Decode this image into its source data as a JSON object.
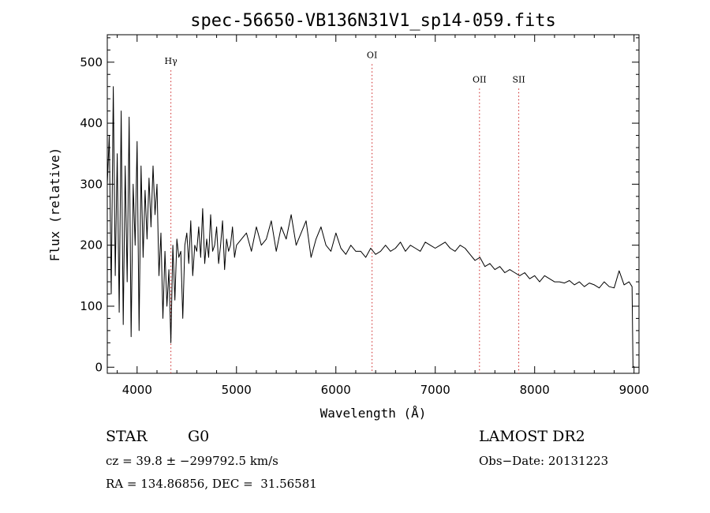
{
  "chart_data": {
    "type": "line",
    "title": "spec-56650-VB136N31V1_sp14-059.fits",
    "xlabel": "Wavelength (Å)",
    "ylabel": "Flux (relative)",
    "xlim": [
      3700,
      9050
    ],
    "ylim": [
      -10,
      545
    ],
    "xticks": [
      4000,
      5000,
      6000,
      7000,
      8000,
      9000
    ],
    "yticks": [
      0,
      100,
      200,
      300,
      400,
      500
    ],
    "grid": false,
    "line_color": "#000000",
    "marker_color": "#cc2222",
    "series": [
      {
        "x": [
          3700,
          3720,
          3740,
          3760,
          3780,
          3800,
          3820,
          3840,
          3860,
          3880,
          3900,
          3920,
          3940,
          3960,
          3980,
          4000,
          4020,
          4040,
          4060,
          4080,
          4100,
          4120,
          4140,
          4160,
          4180,
          4200,
          4220,
          4240,
          4260,
          4280,
          4300,
          4320,
          4340,
          4360,
          4380,
          4400,
          4420,
          4440,
          4460,
          4480,
          4500,
          4520,
          4540,
          4560,
          4580,
          4600,
          4620,
          4640,
          4660,
          4680,
          4700,
          4720,
          4740,
          4760,
          4780,
          4800,
          4820,
          4840,
          4860,
          4880,
          4900,
          4920,
          4940,
          4960,
          4980,
          5000,
          5050,
          5100,
          5150,
          5200,
          5250,
          5300,
          5350,
          5400,
          5450,
          5500,
          5550,
          5600,
          5650,
          5700,
          5750,
          5800,
          5850,
          5900,
          5950,
          6000,
          6050,
          6100,
          6150,
          6200,
          6250,
          6300,
          6350,
          6400,
          6450,
          6500,
          6550,
          6600,
          6650,
          6700,
          6750,
          6800,
          6850,
          6900,
          6950,
          7000,
          7050,
          7100,
          7150,
          7200,
          7250,
          7300,
          7350,
          7400,
          7450,
          7500,
          7550,
          7600,
          7650,
          7700,
          7750,
          7800,
          7850,
          7900,
          7950,
          8000,
          8050,
          8100,
          8150,
          8200,
          8250,
          8300,
          8350,
          8400,
          8450,
          8500,
          8550,
          8600,
          8650,
          8700,
          8750,
          8800,
          8850,
          8900,
          8950,
          8980,
          8990
        ],
        "y": [
          300,
          380,
          120,
          460,
          150,
          350,
          90,
          420,
          70,
          330,
          140,
          410,
          50,
          300,
          200,
          370,
          60,
          330,
          180,
          290,
          210,
          310,
          230,
          330,
          250,
          300,
          150,
          220,
          80,
          190,
          100,
          160,
          40,
          200,
          110,
          210,
          180,
          190,
          80,
          200,
          220,
          170,
          240,
          150,
          200,
          190,
          230,
          180,
          260,
          170,
          210,
          180,
          250,
          190,
          200,
          230,
          170,
          200,
          240,
          160,
          210,
          190,
          200,
          230,
          180,
          200,
          210,
          220,
          190,
          230,
          200,
          210,
          240,
          190,
          230,
          210,
          250,
          200,
          220,
          240,
          180,
          210,
          230,
          200,
          190,
          220,
          195,
          185,
          200,
          190,
          190,
          180,
          195,
          185,
          190,
          200,
          190,
          195,
          205,
          190,
          200,
          195,
          190,
          205,
          200,
          195,
          200,
          205,
          195,
          190,
          200,
          195,
          185,
          175,
          180,
          165,
          170,
          160,
          165,
          155,
          160,
          155,
          150,
          155,
          145,
          150,
          140,
          150,
          145,
          140,
          140,
          138,
          142,
          135,
          140,
          132,
          138,
          135,
          130,
          140,
          132,
          130,
          158,
          135,
          140,
          132,
          0
        ]
      }
    ],
    "line_markers": [
      {
        "label": "Hγ",
        "x": 4340,
        "label_y": 497
      },
      {
        "label": "OI",
        "x": 6364,
        "label_y": 507
      },
      {
        "label": "OII",
        "x": 7445,
        "label_y": 467
      },
      {
        "label": "SII",
        "x": 7840,
        "label_y": 467
      }
    ]
  },
  "info": {
    "class_label": "STAR",
    "subclass": "G0",
    "survey": "LAMOST DR2",
    "redshift_line": "cz = 39.8 ± −299792.5 km/s",
    "obs_date_line": "Obs−Date: 20131223",
    "coords_line": "RA = 134.86856, DEC =  31.56581"
  }
}
